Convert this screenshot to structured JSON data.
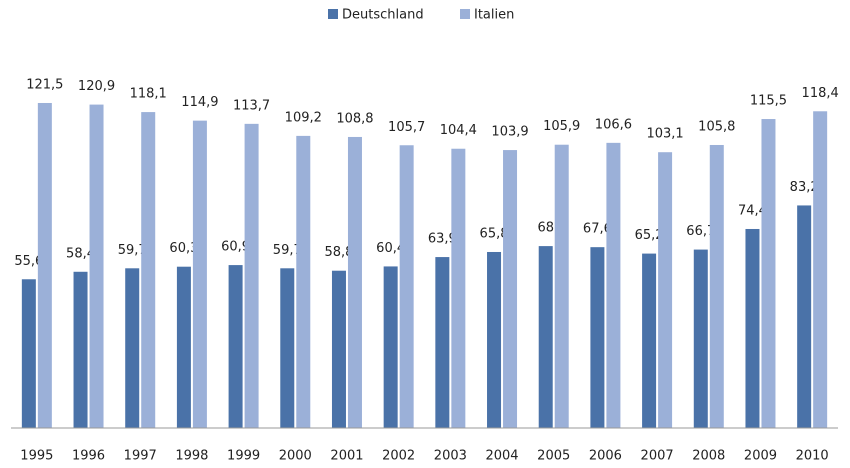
{
  "chart_data": {
    "type": "bar",
    "categories": [
      "1995",
      "1996",
      "1997",
      "1998",
      "1999",
      "2000",
      "2001",
      "2002",
      "2003",
      "2004",
      "2005",
      "2006",
      "2007",
      "2008",
      "2009",
      "2010"
    ],
    "series": [
      {
        "name": "Deutschland",
        "color": "#4a72a8",
        "values": [
          55.6,
          58.4,
          59.7,
          60.3,
          60.9,
          59.7,
          58.8,
          60.4,
          63.9,
          65.8,
          68,
          67.6,
          65.2,
          66.7,
          74.4,
          83.2
        ],
        "value_labels": [
          "55,6",
          "58,4",
          "59,7",
          "60,3",
          "60,9",
          "59,7",
          "58,8",
          "60,4",
          "63,9",
          "65,8",
          "68",
          "67,6",
          "65,2",
          "66,7",
          "74,4",
          "83,2"
        ]
      },
      {
        "name": "Italien",
        "color": "#9bb0d8",
        "values": [
          121.5,
          120.9,
          118.1,
          114.9,
          113.7,
          109.2,
          108.8,
          105.7,
          104.4,
          103.9,
          105.9,
          106.6,
          103.1,
          105.8,
          115.5,
          118.4
        ],
        "value_labels": [
          "121,5",
          "120,9",
          "118,1",
          "114,9",
          "113,7",
          "109,2",
          "108,8",
          "105,7",
          "104,4",
          "103,9",
          "105,9",
          "106,6",
          "103,1",
          "105,8",
          "115,5",
          "118,4"
        ]
      }
    ],
    "ylim": [
      0,
      140
    ],
    "legend": "top"
  }
}
